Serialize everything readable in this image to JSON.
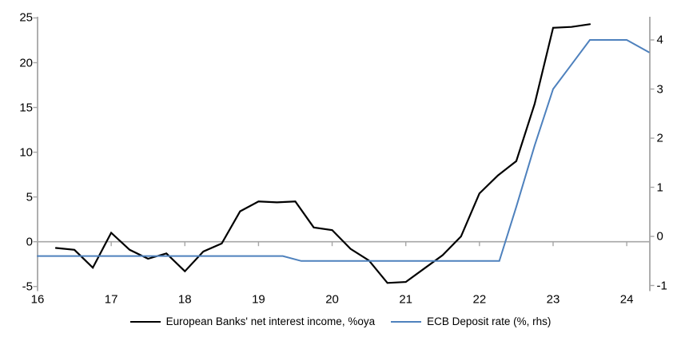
{
  "chart_data": {
    "type": "line",
    "title": "",
    "legend_position": "bottom",
    "grid": "zero-line-only",
    "x_axis": {
      "ticks": [
        16,
        17,
        18,
        19,
        20,
        21,
        22,
        23,
        24
      ],
      "range": [
        16,
        24.31
      ]
    },
    "left_axis": {
      "ticks": [
        25,
        20,
        15,
        10,
        5,
        0,
        -5
      ],
      "range": [
        -5.5,
        25.1
      ]
    },
    "right_axis": {
      "ticks": [
        4,
        3,
        2,
        1,
        0,
        -1
      ],
      "range": [
        -1.11,
        4.47
      ]
    },
    "series": [
      {
        "name": "European Banks' net interest income, %oya",
        "axis": "left",
        "color": "#000000",
        "x": [
          16.25,
          16.5,
          16.75,
          17.0,
          17.25,
          17.5,
          17.75,
          18.0,
          18.25,
          18.5,
          18.75,
          19.0,
          19.25,
          19.5,
          19.75,
          20.0,
          20.25,
          20.5,
          20.75,
          21.0,
          21.25,
          21.5,
          21.75,
          22.0,
          22.25,
          22.5,
          22.75,
          23.0,
          23.25,
          23.5
        ],
        "values": [
          -0.7,
          -0.9,
          -2.9,
          1.0,
          -0.9,
          -1.9,
          -1.3,
          -3.3,
          -1.1,
          -0.2,
          3.4,
          4.5,
          4.4,
          4.5,
          1.6,
          1.3,
          -0.8,
          -2.1,
          -4.6,
          -4.5,
          -3.0,
          -1.5,
          0.6,
          5.4,
          7.4,
          9.0,
          15.4,
          23.9,
          24.0,
          24.3
        ]
      },
      {
        "name": "ECB Deposit rate (%, rhs)",
        "axis": "right",
        "color": "#4e81bd",
        "x": [
          16.0,
          19.33,
          19.58,
          22.27,
          22.5,
          22.75,
          23.0,
          23.25,
          23.5,
          24.0,
          24.3
        ],
        "values": [
          -0.4,
          -0.4,
          -0.5,
          -0.5,
          0.6,
          1.85,
          3.0,
          3.5,
          4.0,
          4.0,
          3.75
        ]
      }
    ]
  },
  "colors": {
    "background": "#ffffff",
    "axis_gray": "#a6a6a6",
    "zero_line_gray": "#a6a6a6",
    "text": "#000000",
    "series_black": "#000000",
    "series_blue": "#4e81bd"
  }
}
